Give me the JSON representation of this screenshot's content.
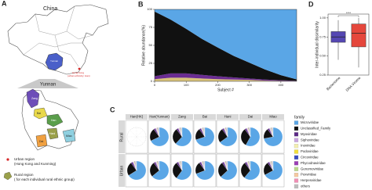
{
  "panel_a": {
    "letter": "A",
    "country": "China",
    "province_tag": "Yunnan",
    "hong_kong": [
      "Hong Kong",
      "(urban ethnicity: Han)"
    ],
    "province": "Yunnan",
    "map_labels": [
      "Zang",
      "Bai",
      "Han",
      "Hani",
      "Dai",
      "Miao"
    ],
    "urban": [
      "Urban region",
      "(Hong Kong and Kunming)"
    ],
    "rural": [
      "Rural region",
      "( for each individual rural ethnic group)"
    ]
  },
  "chart_data": [
    {
      "type": "area",
      "panel": "B",
      "xlabel": "Subject #",
      "ylabel": "Relative abundance(%)",
      "x": [
        0,
        50,
        100,
        150,
        200,
        250,
        300,
        350,
        400,
        450
      ],
      "xlim": [
        0,
        450
      ],
      "xticks": [
        0,
        100,
        200,
        300,
        400
      ],
      "ylim": [
        0,
        100
      ],
      "yticks": [
        0,
        25,
        50,
        75,
        100
      ],
      "series": [
        {
          "color": "#d8c27a",
          "values": [
            3,
            5,
            5,
            4,
            3,
            2.5,
            2,
            1,
            0.5,
            0.2
          ]
        },
        {
          "color": "#6a2c91",
          "values": [
            4,
            6,
            6,
            5,
            4,
            3,
            2,
            1.5,
            1,
            0.5
          ]
        },
        {
          "color": "#111111",
          "values": [
            90,
            75,
            62,
            50,
            40,
            30,
            22,
            14,
            7,
            2
          ]
        },
        {
          "color": "#5aa6e6",
          "values": [
            3,
            14,
            27,
            41,
            53,
            64.5,
            74,
            83.5,
            91.5,
            97.3
          ]
        }
      ]
    },
    {
      "type": "pie",
      "panel": "C",
      "legend_title": "family",
      "families": [
        {
          "name": "Microviridae",
          "color": "#5aa6e6"
        },
        {
          "name": "Unclassified_Family",
          "color": "#111111"
        },
        {
          "name": "Myoviridae",
          "color": "#5b2a86"
        },
        {
          "name": "Siphoviridae",
          "color": "#c9a6e0"
        },
        {
          "name": "Inoviridae",
          "color": "#f3eeb0"
        },
        {
          "name": "Podoviridae",
          "color": "#f2df3a"
        },
        {
          "name": "Circoviridae",
          "color": "#3b4cc0"
        },
        {
          "name": "Phycodnaviridae",
          "color": "#9b3fb5"
        },
        {
          "name": "Genomoviridae",
          "color": "#b8d88a"
        },
        {
          "name": "Poxviridae",
          "color": "#f6c9a0"
        },
        {
          "name": "Herpesviridae",
          "color": "#f08fb5"
        },
        {
          "name": "others",
          "color": "#bdbdbd"
        }
      ],
      "rows": [
        "Rural",
        "Urban"
      ],
      "columns": [
        "Han(HK)",
        "Han(Yunnan)",
        "Zang",
        "Bai",
        "Hani",
        "Dai",
        "Miao"
      ],
      "values": [
        [
          null,
          [
            68,
            22,
            3,
            2,
            0.5,
            1,
            1,
            0.5,
            0.5,
            0.3,
            0.2,
            1
          ],
          [
            62,
            28,
            3,
            2,
            0.5,
            1,
            1,
            0.5,
            0.5,
            0.3,
            0.2,
            1
          ],
          [
            70,
            20,
            3,
            2,
            0.5,
            1,
            1,
            0.5,
            0.5,
            0.3,
            0.2,
            1
          ],
          [
            65,
            25,
            3,
            2,
            0.5,
            1,
            1,
            0.5,
            0.5,
            0.3,
            0.2,
            1
          ],
          [
            58,
            32,
            3,
            2,
            0.5,
            1,
            1,
            0.5,
            0.5,
            0.3,
            0.2,
            1
          ],
          [
            72,
            18,
            3,
            2,
            0.5,
            1,
            1,
            0.5,
            0.5,
            0.3,
            0.2,
            1
          ]
        ],
        [
          [
            66,
            24,
            3,
            2,
            0.5,
            1,
            1,
            0.5,
            0.5,
            0.3,
            0.2,
            1
          ],
          [
            64,
            26,
            3,
            2,
            0.5,
            1,
            1,
            0.5,
            0.5,
            0.3,
            0.2,
            1
          ],
          [
            60,
            30,
            3,
            2,
            0.5,
            1,
            1,
            0.5,
            0.5,
            0.3,
            0.2,
            1
          ],
          [
            69,
            21,
            3,
            2,
            0.5,
            1,
            1,
            0.5,
            0.5,
            0.3,
            0.2,
            1
          ],
          [
            63,
            27,
            3,
            2,
            0.5,
            1,
            1,
            0.5,
            0.5,
            0.3,
            0.2,
            1
          ],
          [
            61,
            29,
            3,
            2,
            0.5,
            1,
            1,
            0.5,
            0.5,
            0.3,
            0.2,
            1
          ],
          [
            67,
            23,
            3,
            2,
            0.5,
            1,
            1,
            0.5,
            0.5,
            0.3,
            0.2,
            1
          ]
        ]
      ]
    },
    {
      "type": "box",
      "panel": "D",
      "ylabel": "Inter-individual dissimilarity",
      "annotation": "****",
      "categories": [
        "Bacteriome",
        "DNA Virome"
      ],
      "colors": [
        "#5547b3",
        "#e5473c"
      ],
      "ylim": [
        0.25,
        1.05
      ],
      "yticks": [
        {
          "value": 0.25,
          "label": "0.25"
        },
        {
          "value": 0.5,
          "label": "0.50"
        },
        {
          "value": 0.75,
          "label": "0.75"
        },
        {
          "value": 1,
          "label": "1.00"
        }
      ],
      "boxes": [
        {
          "min": 0.45,
          "q1": 0.68,
          "median": 0.75,
          "q3": 0.82,
          "max": 0.97
        },
        {
          "min": 0.35,
          "q1": 0.62,
          "median": 0.8,
          "q3": 0.92,
          "max": 1.0
        }
      ]
    }
  ]
}
